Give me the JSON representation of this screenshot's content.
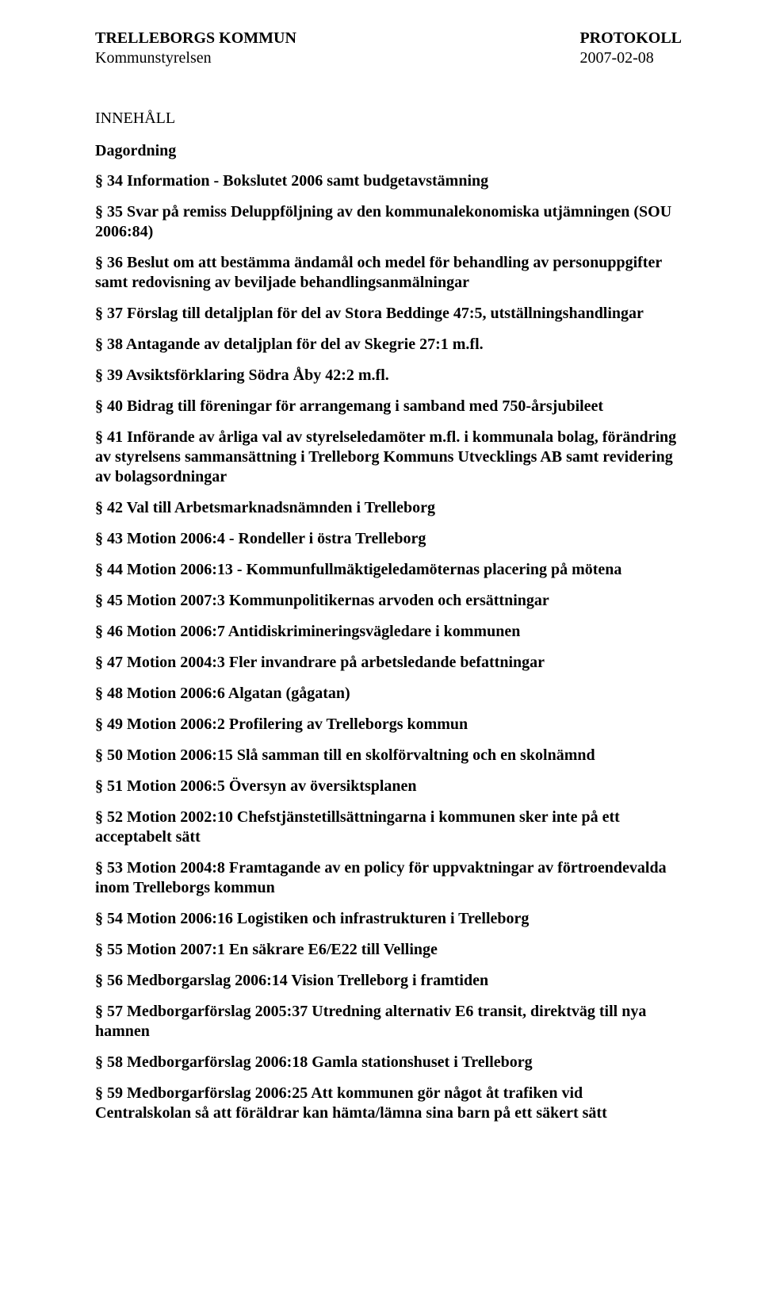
{
  "header": {
    "left": {
      "line1": "TRELLEBORGS KOMMUN",
      "line2": "Kommunstyrelsen"
    },
    "right": {
      "line1": "PROTOKOLL",
      "line2": "2007-02-08"
    }
  },
  "section_title": "INNEHÅLL",
  "dagordning_label": "Dagordning",
  "items": [
    {
      "text": "§ 34 Information - Bokslutet 2006 samt budgetavstämning"
    },
    {
      "text": "§ 35 Svar på remiss Deluppföljning av den kommunalekonomiska utjämningen (SOU 2006:84)"
    },
    {
      "text": "§ 36 Beslut om att bestämma ändamål och medel för behandling av personuppgifter samt redovisning av beviljade behandlingsanmälningar"
    },
    {
      "text": "§ 37 Förslag till detaljplan för del av Stora Beddinge 47:5, utställningshandlingar"
    },
    {
      "text": "§ 38 Antagande av detaljplan för del av Skegrie 27:1 m.fl."
    },
    {
      "text": "§ 39 Avsiktsförklaring Södra Åby 42:2 m.fl."
    },
    {
      "text": "§ 40 Bidrag till föreningar för arrangemang i samband med 750-årsjubileet"
    },
    {
      "text": "§ 41 Införande av årliga val av styrelseledamöter m.fl. i kommunala bolag, förändring av styrelsens sammansättning i Trelleborg Kommuns Utvecklings AB samt revidering av bolagsordningar"
    },
    {
      "text": "§ 42 Val till Arbetsmarknadsnämnden i Trelleborg"
    },
    {
      "text": "§ 43 Motion 2006:4 - Rondeller i östra Trelleborg"
    },
    {
      "text": "§ 44 Motion 2006:13 - Kommunfullmäktigeledamöternas placering på mötena"
    },
    {
      "text": "§ 45 Motion 2007:3 Kommunpolitikernas arvoden och ersättningar"
    },
    {
      "text": "§ 46 Motion 2006:7 Antidiskrimineringsvägledare i kommunen"
    },
    {
      "text": "§ 47 Motion 2004:3 Fler invandrare på arbetsledande befattningar"
    },
    {
      "text": "§ 48 Motion 2006:6 Algatan (gågatan)"
    },
    {
      "text": "§ 49 Motion 2006:2 Profilering av Trelleborgs kommun"
    },
    {
      "text": "§ 50 Motion 2006:15 Slå samman till en skolförvaltning och en skolnämnd"
    },
    {
      "text": "§ 51 Motion 2006:5 Översyn av översiktsplanen"
    },
    {
      "text": "§ 52 Motion 2002:10 Chefstjänstetillsättningarna i kommunen sker inte på ett acceptabelt sätt"
    },
    {
      "text": "§ 53 Motion 2004:8 Framtagande av en policy för uppvaktningar av förtroendevalda inom Trelleborgs kommun"
    },
    {
      "text": "§ 54 Motion 2006:16 Logistiken och infrastrukturen i Trelleborg"
    },
    {
      "text": "§ 55 Motion 2007:1 En säkrare E6/E22 till Vellinge"
    },
    {
      "text": "§ 56 Medborgarslag 2006:14 Vision Trelleborg i framtiden"
    },
    {
      "text": "§ 57 Medborgarförslag 2005:37 Utredning alternativ E6 transit, direktväg till nya hamnen"
    },
    {
      "text": "§ 58 Medborgarförslag 2006:18 Gamla stationshuset i Trelleborg"
    },
    {
      "text": "§ 59 Medborgarförslag 2006:25 Att kommunen gör något åt trafiken vid Centralskolan så att föräldrar kan hämta/lämna sina barn på ett säkert sätt"
    }
  ]
}
